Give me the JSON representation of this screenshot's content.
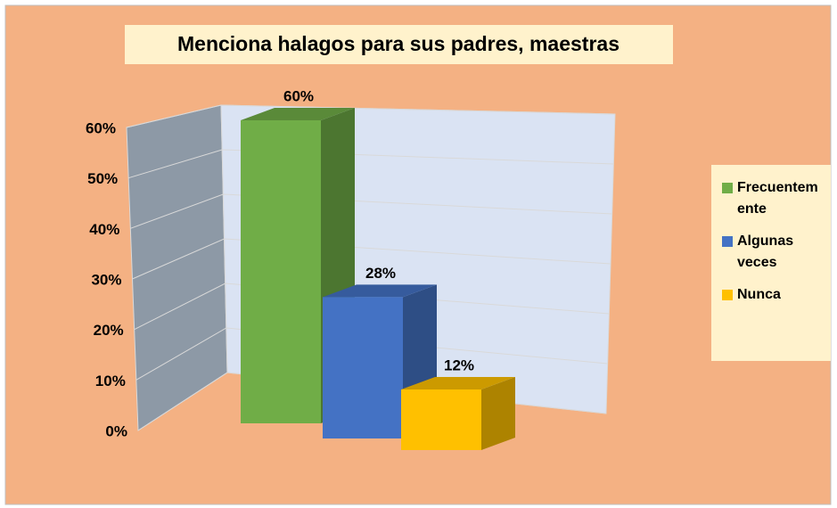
{
  "chart_data": {
    "type": "bar3d",
    "title": "Menciona halagos  para sus padres, maestras",
    "categories": [
      "Frecuentemente",
      "Algunas veces",
      "Nunca"
    ],
    "values": [
      60,
      28,
      12
    ],
    "value_labels": [
      "60%",
      "28%",
      "12%"
    ],
    "colors": [
      "#70ad47",
      "#4472c4",
      "#ffc000"
    ],
    "ylim": [
      0,
      60
    ],
    "yticks": [
      {
        "value": 0,
        "label": "0%"
      },
      {
        "value": 10,
        "label": "10%"
      },
      {
        "value": 20,
        "label": "20%"
      },
      {
        "value": 30,
        "label": "30%"
      },
      {
        "value": 40,
        "label": "40%"
      },
      {
        "value": 50,
        "label": "50%"
      },
      {
        "value": 60,
        "label": "60%"
      }
    ],
    "grid": true,
    "legend": "right"
  }
}
